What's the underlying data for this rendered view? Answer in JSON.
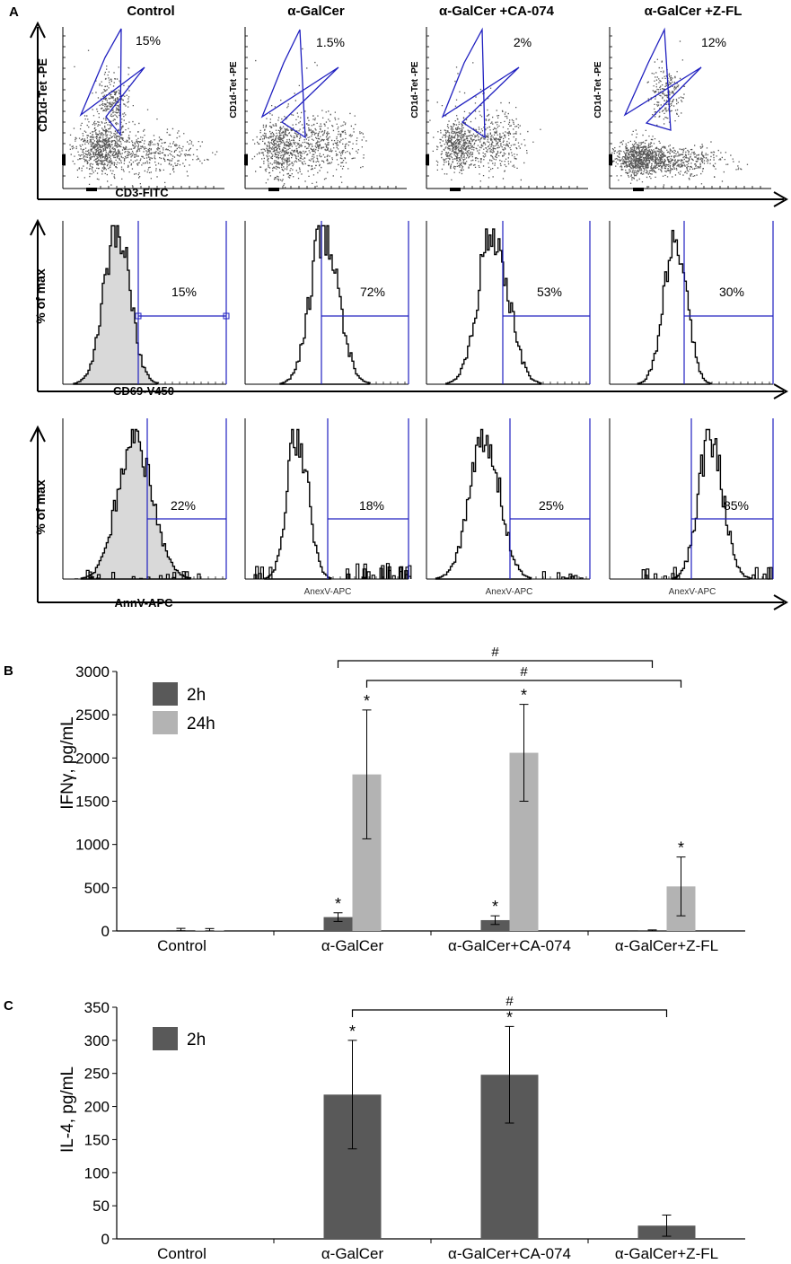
{
  "panel_a": {
    "label": "A",
    "columns": [
      "Control",
      "α-GalCer",
      "α-GalCer +CA-074",
      "α-GalCer +Z-FL"
    ],
    "row1": {
      "y_label": "CD1d-Tet -PE",
      "x_label": "CD3-FITC",
      "percents": [
        "15%",
        "1.5%",
        "2%",
        "12%"
      ]
    },
    "row2": {
      "y_label": "% of max",
      "x_label": "CD69-V450",
      "percents": [
        "15%",
        "72%",
        "53%",
        "30%"
      ]
    },
    "row3": {
      "y_label": "% of max",
      "x_label": "AnnV-APC",
      "sub_x_label": "AnexV-APC",
      "percents": [
        "22%",
        "18%",
        "25%",
        "85%"
      ]
    }
  },
  "colors": {
    "gate": "#2020c0",
    "dots": "#555555",
    "bar_2h": "#595959",
    "bar_24h": "#b3b3b3",
    "fill_control": "#d9d9d9"
  },
  "chart_data": [
    {
      "panel_label": "B",
      "type": "bar",
      "ylabel": "IFNγ, pg/mL",
      "ylim": [
        0,
        3000
      ],
      "yticks": [
        "0",
        "500",
        "1000",
        "1500",
        "2000",
        "2500",
        "3000"
      ],
      "categories": [
        "Control",
        "α-GalCer",
        "α-GalCer+CA-074",
        "α-GalCer+Z-FL"
      ],
      "series": [
        {
          "name": "2h",
          "values": [
            10,
            160,
            125,
            2
          ],
          "errors": [
            20,
            50,
            50,
            10
          ]
        },
        {
          "name": "24h",
          "values": [
            8,
            1810,
            2060,
            515
          ],
          "errors": [
            20,
            745,
            560,
            340
          ]
        }
      ],
      "asterisk": "*",
      "significance_mark": "#"
    },
    {
      "panel_label": "C",
      "type": "bar",
      "ylabel": "IL-4, pg/mL",
      "ylim": [
        0,
        350
      ],
      "yticks": [
        "0",
        "50",
        "100",
        "150",
        "200",
        "250",
        "300",
        "350"
      ],
      "categories": [
        "Control",
        "α-GalCer",
        "α-GalCer+CA-074",
        "α-GalCer+Z-FL"
      ],
      "series": [
        {
          "name": "2h",
          "values": [
            0,
            218,
            248,
            20
          ],
          "errors": [
            0,
            82,
            73,
            16
          ]
        }
      ],
      "asterisk": "*",
      "significance_mark": "#"
    }
  ]
}
